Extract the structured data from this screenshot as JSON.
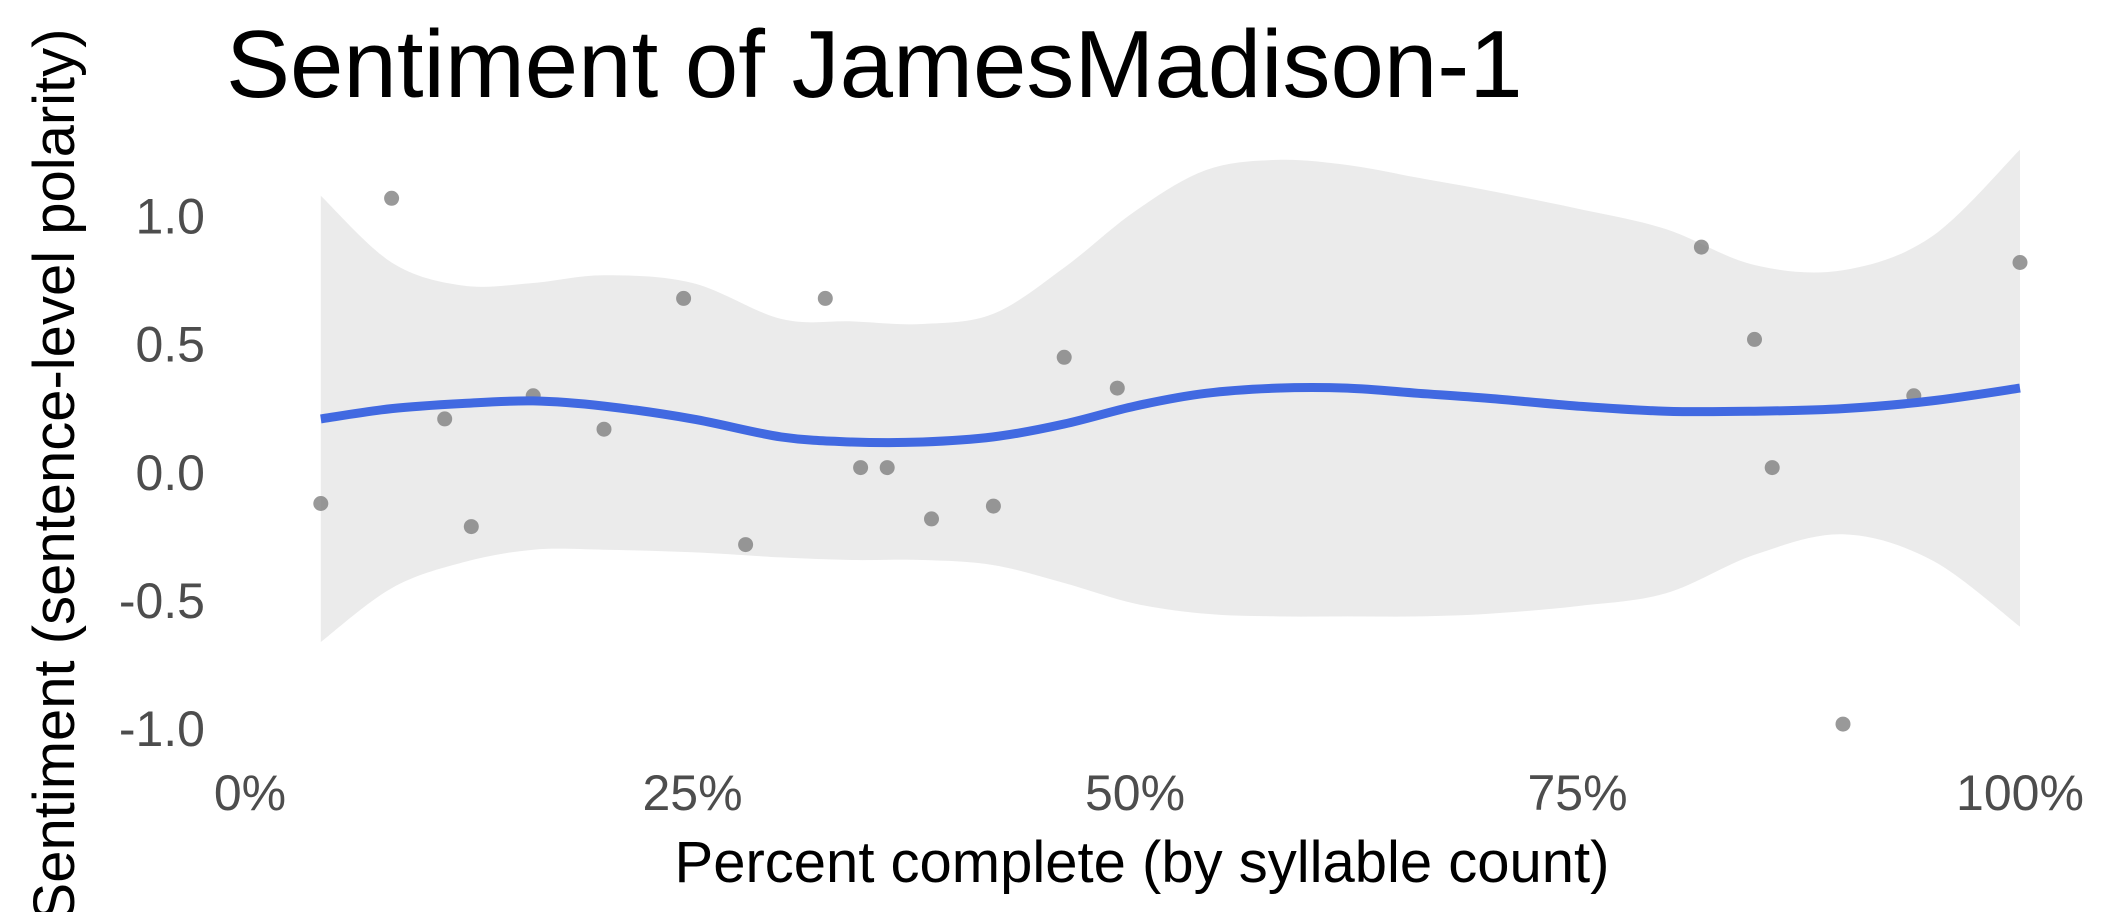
{
  "chart_data": {
    "type": "scatter",
    "title": "Sentiment of JamesMadison-1",
    "xlabel": "Percent complete (by syllable count)",
    "ylabel": "Sentiment (sentence-level polarity)",
    "xlim": [
      0,
      100
    ],
    "ylim": [
      -1.12,
      1.2
    ],
    "x_ticks": [
      0,
      25,
      50,
      75,
      100
    ],
    "x_tick_labels": [
      "0%",
      "25%",
      "50%",
      "75%",
      "100%"
    ],
    "y_ticks": [
      -1.0,
      -0.5,
      0.0,
      0.5,
      1.0
    ],
    "y_tick_labels": [
      "-1.0",
      "-0.5",
      "0.0",
      "0.5",
      "1.0"
    ],
    "grid": false,
    "legend": "none",
    "point_color": "#808080",
    "smooth_color": "#4169e1",
    "band_color": "#ebebeb",
    "points": [
      {
        "x": 4.0,
        "y": -0.12
      },
      {
        "x": 8.0,
        "y": 1.07
      },
      {
        "x": 11.0,
        "y": 0.21
      },
      {
        "x": 12.5,
        "y": -0.21
      },
      {
        "x": 16.0,
        "y": 0.3
      },
      {
        "x": 20.0,
        "y": 0.17
      },
      {
        "x": 24.5,
        "y": 0.68
      },
      {
        "x": 28.0,
        "y": -0.28
      },
      {
        "x": 32.5,
        "y": 0.68
      },
      {
        "x": 34.5,
        "y": 0.02
      },
      {
        "x": 36.0,
        "y": 0.02
      },
      {
        "x": 38.5,
        "y": -0.18
      },
      {
        "x": 42.0,
        "y": -0.13
      },
      {
        "x": 46.0,
        "y": 0.45
      },
      {
        "x": 49.0,
        "y": 0.33
      },
      {
        "x": 82.0,
        "y": 0.88
      },
      {
        "x": 85.0,
        "y": 0.52
      },
      {
        "x": 86.0,
        "y": 0.02
      },
      {
        "x": 90.0,
        "y": -0.98
      },
      {
        "x": 94.0,
        "y": 0.3
      },
      {
        "x": 100.0,
        "y": 0.82
      }
    ],
    "smooth": {
      "x": [
        4,
        8,
        12,
        16,
        20,
        25,
        30,
        34,
        38,
        42,
        46,
        50,
        54,
        58,
        62,
        66,
        70,
        75,
        80,
        85,
        90,
        95,
        100
      ],
      "y": [
        0.21,
        0.25,
        0.27,
        0.28,
        0.26,
        0.21,
        0.14,
        0.12,
        0.12,
        0.14,
        0.19,
        0.26,
        0.31,
        0.33,
        0.33,
        0.31,
        0.29,
        0.26,
        0.24,
        0.24,
        0.25,
        0.28,
        0.33
      ],
      "lower": [
        -0.66,
        -0.45,
        -0.35,
        -0.3,
        -0.3,
        -0.31,
        -0.33,
        -0.34,
        -0.34,
        -0.36,
        -0.43,
        -0.51,
        -0.55,
        -0.56,
        -0.56,
        -0.56,
        -0.55,
        -0.52,
        -0.47,
        -0.32,
        -0.24,
        -0.34,
        -0.6
      ],
      "upper": [
        1.08,
        0.82,
        0.73,
        0.74,
        0.77,
        0.74,
        0.6,
        0.59,
        0.58,
        0.62,
        0.8,
        1.02,
        1.18,
        1.22,
        1.2,
        1.15,
        1.1,
        1.03,
        0.95,
        0.81,
        0.79,
        0.92,
        1.26
      ]
    }
  }
}
